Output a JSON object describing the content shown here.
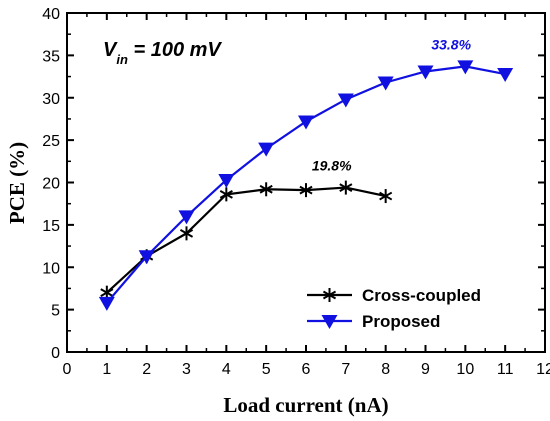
{
  "chart_data": {
    "type": "line",
    "xlabel": "Load current (nA)",
    "ylabel": "PCE (%)",
    "xlim": [
      0,
      12
    ],
    "ylim": [
      0,
      40
    ],
    "xticks": [
      0,
      1,
      2,
      3,
      4,
      5,
      6,
      7,
      8,
      9,
      10,
      11,
      12
    ],
    "yticks": [
      0,
      5,
      10,
      15,
      20,
      25,
      30,
      35,
      40
    ],
    "grid": false,
    "legend_position": "bottom-right",
    "condition": {
      "main": "V",
      "sub": "in",
      "rest": " = 100 mV"
    },
    "series": [
      {
        "name": "Cross-coupled",
        "color": "#000000",
        "marker": "asterisk",
        "x": [
          1,
          2,
          3,
          4,
          5,
          6,
          7,
          8
        ],
        "y": [
          7.0,
          11.3,
          14.0,
          18.6,
          19.2,
          19.1,
          19.4,
          18.4
        ]
      },
      {
        "name": "Proposed",
        "color": "#1010e0",
        "marker": "triangle-down",
        "x": [
          1,
          2,
          3,
          4,
          5,
          6,
          7,
          8,
          9,
          10,
          11
        ],
        "y": [
          5.8,
          11.3,
          16.0,
          20.3,
          24.0,
          27.2,
          29.8,
          31.8,
          33.1,
          33.7,
          32.8
        ]
      }
    ],
    "annotations": [
      {
        "text": "19.8%",
        "series": 0,
        "color": "#000000"
      },
      {
        "text": "33.8%",
        "series": 1,
        "color": "#1010e0"
      }
    ]
  }
}
